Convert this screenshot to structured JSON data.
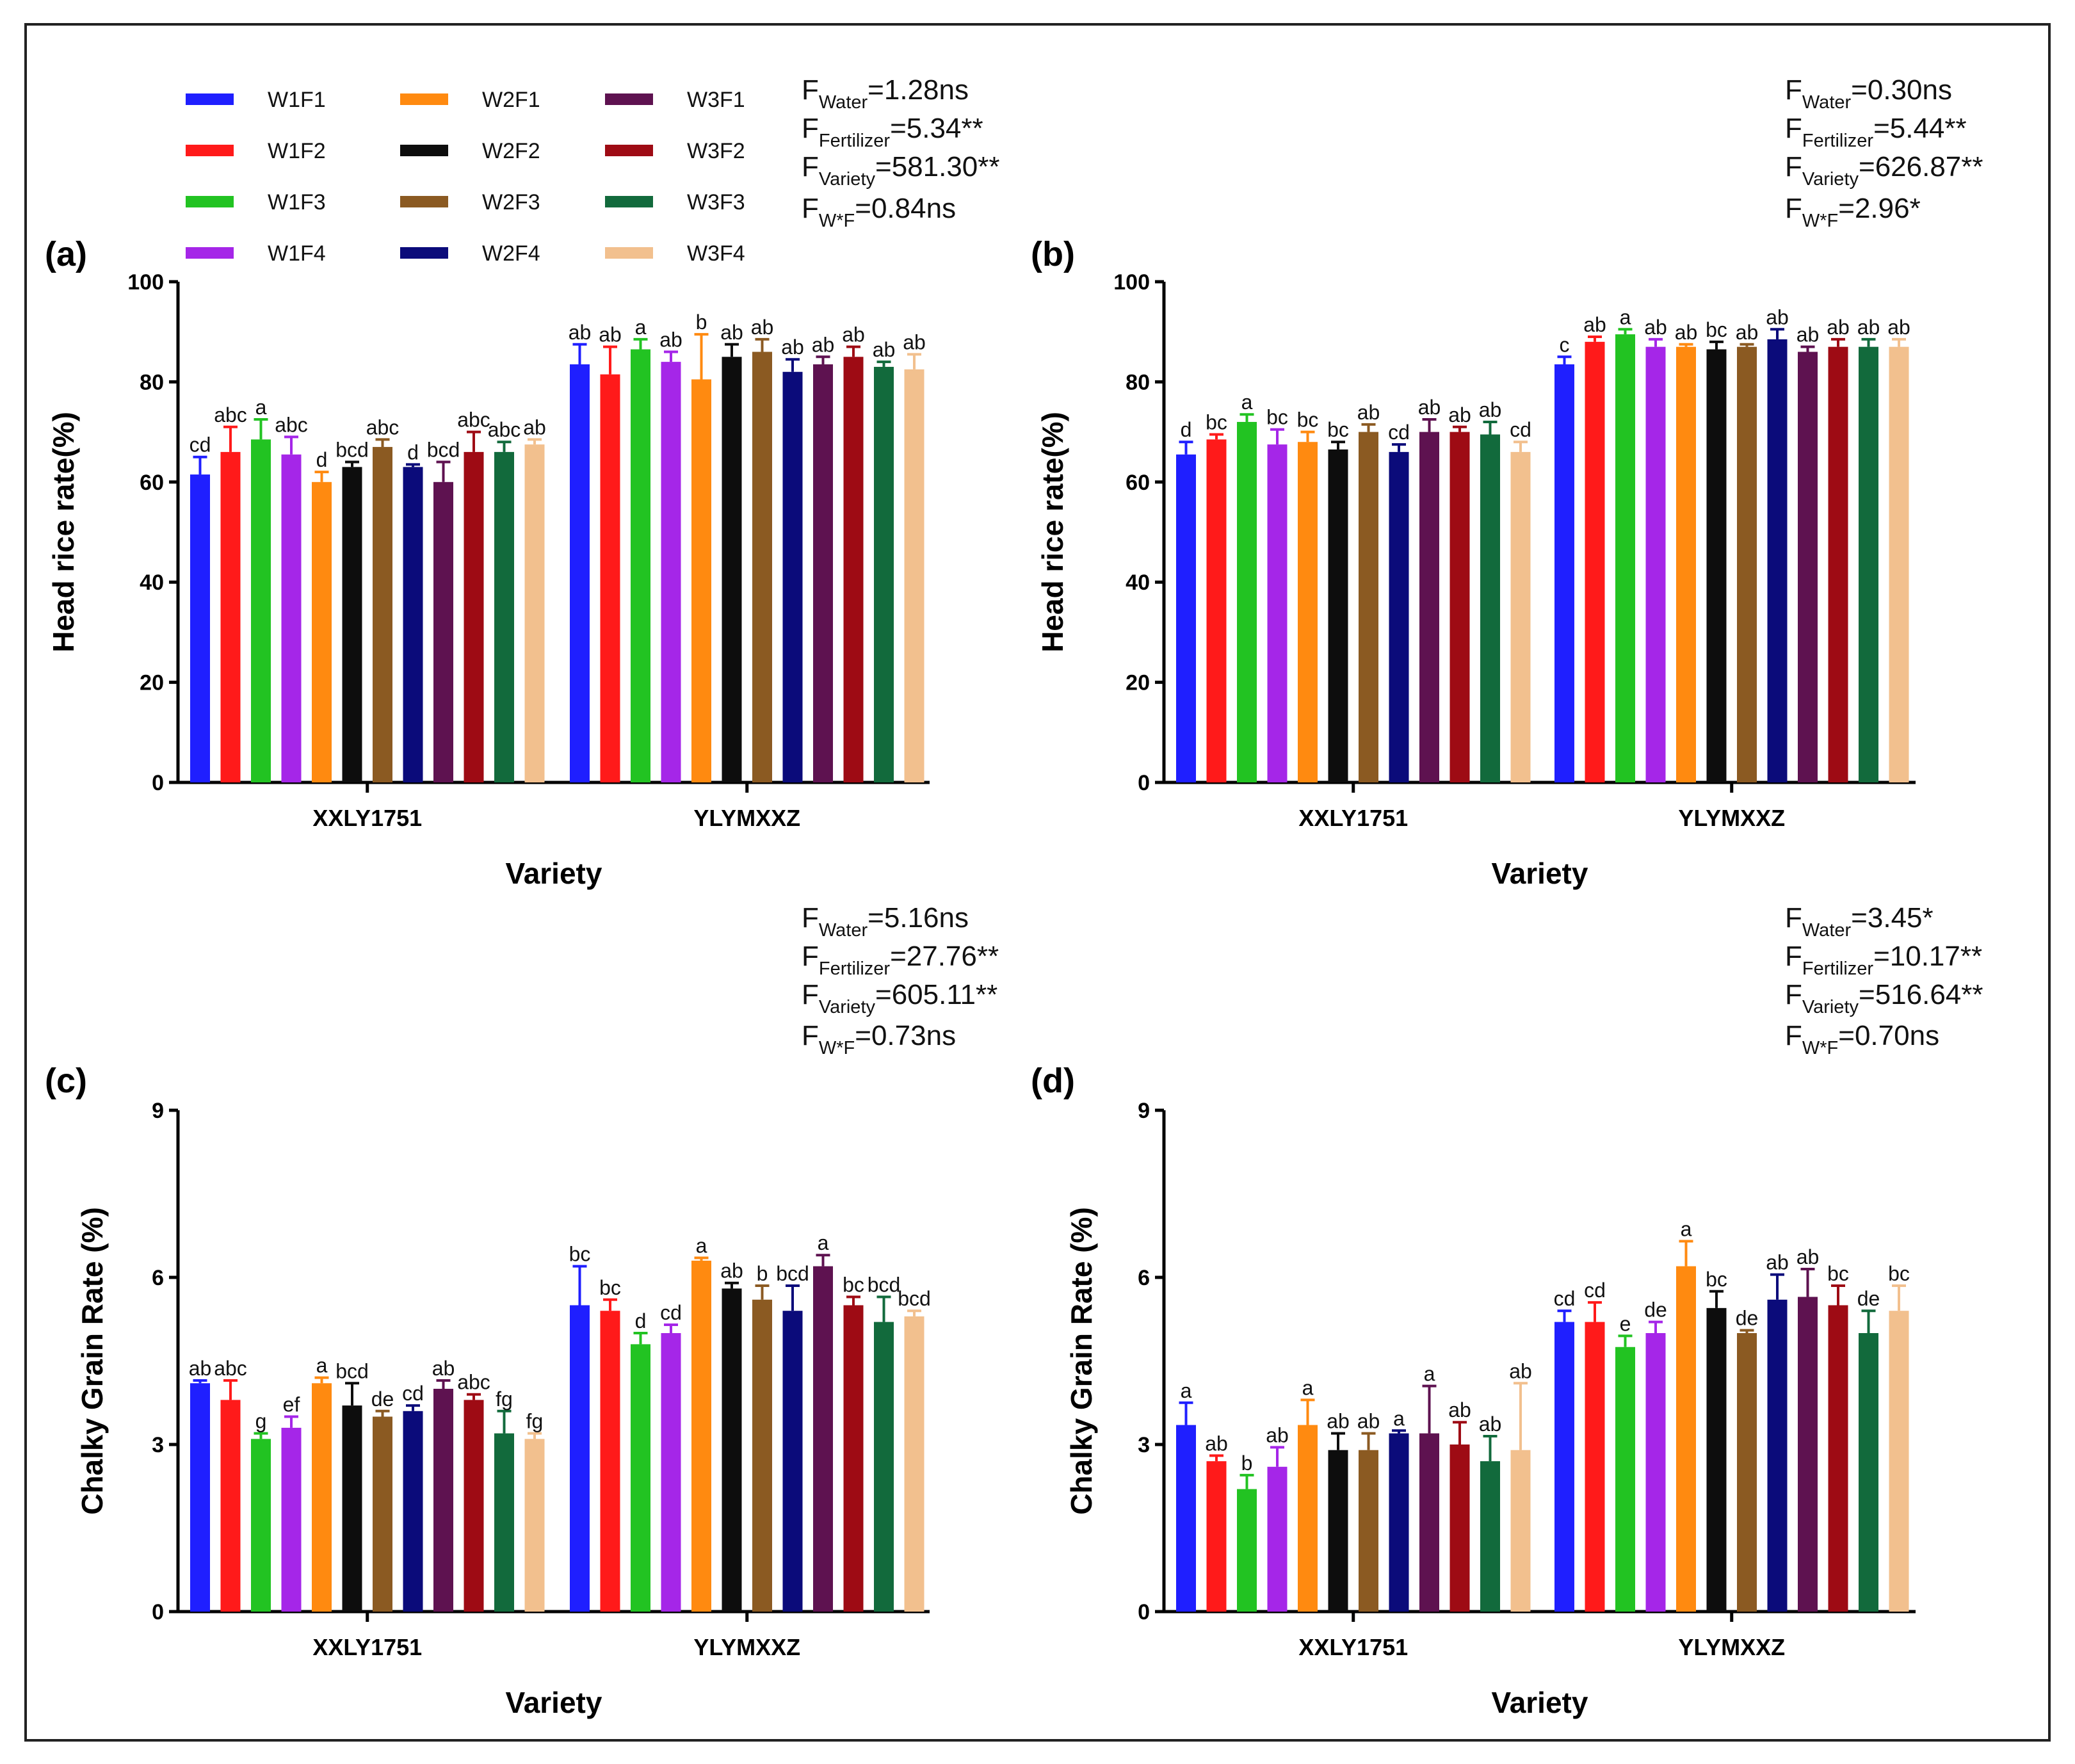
{
  "series_colors": {
    "W1F1": "#1f1fff",
    "W1F2": "#ff1a1a",
    "W1F3": "#22c322",
    "W1F4": "#a526e8",
    "W2F1": "#ff8a10",
    "W2F2": "#0d0d0d",
    "W2F3": "#8b5a22",
    "W2F4": "#0b0b7a",
    "W3F1": "#5e1250",
    "W3F2": "#9e0b14",
    "W3F3": "#126a3c",
    "W3F4": "#f2c08e"
  },
  "chart_data": [
    {
      "type": "bar",
      "panel_label": "(a)",
      "ylabel": "Head rice rate(%)",
      "xlabel": "Variety",
      "ylim": [
        0,
        100
      ],
      "yticks": [
        0,
        20,
        40,
        60,
        80,
        100
      ],
      "ytick_labels": [
        "0",
        "20",
        "40",
        "60",
        "80",
        "100"
      ],
      "categories": [
        "XXLY1751",
        "YLYMXXZ"
      ],
      "legend": [
        "W1F1",
        "W1F2",
        "W1F3",
        "W1F4",
        "W2F1",
        "W2F2",
        "W2F3",
        "W2F4",
        "W3F1",
        "W3F2",
        "W3F3",
        "W3F4"
      ],
      "series": [
        {
          "name": "W1F1",
          "values": [
            61.5,
            83.5
          ],
          "errors": [
            3.5,
            4.0
          ],
          "letters": [
            "cd",
            "ab"
          ]
        },
        {
          "name": "W1F2",
          "values": [
            66.0,
            81.5
          ],
          "errors": [
            5.0,
            5.5
          ],
          "letters": [
            "abc",
            "ab"
          ]
        },
        {
          "name": "W1F3",
          "values": [
            68.5,
            86.5
          ],
          "errors": [
            4.0,
            2.0
          ],
          "letters": [
            "a",
            "a"
          ]
        },
        {
          "name": "W1F4",
          "values": [
            65.5,
            84.0
          ],
          "errors": [
            3.5,
            2.0
          ],
          "letters": [
            "abc",
            "ab"
          ]
        },
        {
          "name": "W2F1",
          "values": [
            60.0,
            80.5
          ],
          "errors": [
            2.0,
            9.0
          ],
          "letters": [
            "d",
            "b"
          ]
        },
        {
          "name": "W2F2",
          "values": [
            63.0,
            85.0
          ],
          "errors": [
            1.0,
            2.5
          ],
          "letters": [
            "bcd",
            "ab"
          ]
        },
        {
          "name": "W2F3",
          "values": [
            67.0,
            86.0
          ],
          "errors": [
            1.5,
            2.5
          ],
          "letters": [
            "abc",
            "ab"
          ]
        },
        {
          "name": "W2F4",
          "values": [
            63.0,
            82.0
          ],
          "errors": [
            0.5,
            2.5
          ],
          "letters": [
            "d",
            "ab"
          ]
        },
        {
          "name": "W3F1",
          "values": [
            60.0,
            83.5
          ],
          "errors": [
            4.0,
            1.5
          ],
          "letters": [
            "bcd",
            "ab"
          ]
        },
        {
          "name": "W3F2",
          "values": [
            66.0,
            85.0
          ],
          "errors": [
            4.0,
            2.0
          ],
          "letters": [
            "abc",
            "ab"
          ]
        },
        {
          "name": "W3F3",
          "values": [
            66.0,
            83.0
          ],
          "errors": [
            2.0,
            1.0
          ],
          "letters": [
            "abc",
            "ab"
          ]
        },
        {
          "name": "W3F4",
          "values": [
            67.5,
            82.5
          ],
          "errors": [
            1.0,
            3.0
          ],
          "letters": [
            "ab",
            "ab"
          ]
        }
      ],
      "stats": [
        {
          "sub": "Water",
          "value": "=1.28ns"
        },
        {
          "sub": "Fertilizer",
          "value": "=5.34**"
        },
        {
          "sub": "Variety",
          "value": "=581.30**"
        },
        {
          "sub": "W*F",
          "value": "=0.84ns"
        }
      ]
    },
    {
      "type": "bar",
      "panel_label": "(b)",
      "ylabel": "Head rice rate(%)",
      "xlabel": "Variety",
      "ylim": [
        0,
        100
      ],
      "yticks": [
        0,
        20,
        40,
        60,
        80,
        100
      ],
      "ytick_labels": [
        "0",
        "20",
        "40",
        "60",
        "80",
        "100"
      ],
      "categories": [
        "XXLY1751",
        "YLYMXXZ"
      ],
      "series": [
        {
          "name": "W1F1",
          "values": [
            65.5,
            83.5
          ],
          "errors": [
            2.5,
            1.5
          ],
          "letters": [
            "d",
            "c"
          ]
        },
        {
          "name": "W1F2",
          "values": [
            68.5,
            88.0
          ],
          "errors": [
            1.0,
            1.0
          ],
          "letters": [
            "bc",
            "ab"
          ]
        },
        {
          "name": "W1F3",
          "values": [
            72.0,
            89.5
          ],
          "errors": [
            1.5,
            1.0
          ],
          "letters": [
            "a",
            "a"
          ]
        },
        {
          "name": "W1F4",
          "values": [
            67.5,
            87.0
          ],
          "errors": [
            3.0,
            1.5
          ],
          "letters": [
            "bc",
            "ab"
          ]
        },
        {
          "name": "W2F1",
          "values": [
            68.0,
            87.0
          ],
          "errors": [
            2.0,
            0.5
          ],
          "letters": [
            "bc",
            "ab"
          ]
        },
        {
          "name": "W2F2",
          "values": [
            66.5,
            86.5
          ],
          "errors": [
            1.5,
            1.5
          ],
          "letters": [
            "bc",
            "bc"
          ]
        },
        {
          "name": "W2F3",
          "values": [
            70.0,
            87.0
          ],
          "errors": [
            1.5,
            0.5
          ],
          "letters": [
            "ab",
            "ab"
          ]
        },
        {
          "name": "W2F4",
          "values": [
            66.0,
            88.5
          ],
          "errors": [
            1.5,
            2.0
          ],
          "letters": [
            "cd",
            "ab"
          ]
        },
        {
          "name": "W3F1",
          "values": [
            70.0,
            86.0
          ],
          "errors": [
            2.5,
            1.0
          ],
          "letters": [
            "ab",
            "ab"
          ]
        },
        {
          "name": "W3F2",
          "values": [
            70.0,
            87.0
          ],
          "errors": [
            1.0,
            1.5
          ],
          "letters": [
            "ab",
            "ab"
          ]
        },
        {
          "name": "W3F3",
          "values": [
            69.5,
            87.0
          ],
          "errors": [
            2.5,
            1.5
          ],
          "letters": [
            "ab",
            "ab"
          ]
        },
        {
          "name": "W3F4",
          "values": [
            66.0,
            87.0
          ],
          "errors": [
            2.0,
            1.5
          ],
          "letters": [
            "cd",
            "ab"
          ]
        }
      ],
      "stats": [
        {
          "sub": "Water",
          "value": "=0.30ns"
        },
        {
          "sub": "Fertilizer",
          "value": "=5.44**"
        },
        {
          "sub": "Variety",
          "value": "=626.87**"
        },
        {
          "sub": "W*F",
          "value": "=2.96*"
        }
      ]
    },
    {
      "type": "bar",
      "panel_label": "(c)",
      "ylabel": "Chalky Grain Rate (%)",
      "xlabel": "Variety",
      "ylim": [
        0,
        9
      ],
      "yticks": [
        0,
        3,
        6,
        9
      ],
      "ytick_labels": [
        "0",
        "3",
        "6",
        "9"
      ],
      "categories": [
        "XXLY1751",
        "YLYMXXZ"
      ],
      "series": [
        {
          "name": "W1F1",
          "values": [
            4.1,
            5.5
          ],
          "errors": [
            0.05,
            0.7
          ],
          "letters": [
            "ab",
            "bc"
          ]
        },
        {
          "name": "W1F2",
          "values": [
            3.8,
            5.4
          ],
          "errors": [
            0.35,
            0.2
          ],
          "letters": [
            "abc",
            "bc"
          ]
        },
        {
          "name": "W1F3",
          "values": [
            3.1,
            4.8
          ],
          "errors": [
            0.1,
            0.2
          ],
          "letters": [
            "g",
            "d"
          ]
        },
        {
          "name": "W1F4",
          "values": [
            3.3,
            5.0
          ],
          "errors": [
            0.2,
            0.15
          ],
          "letters": [
            "ef",
            "cd"
          ]
        },
        {
          "name": "W2F1",
          "values": [
            4.1,
            6.3
          ],
          "errors": [
            0.1,
            0.05
          ],
          "letters": [
            "a",
            "a"
          ]
        },
        {
          "name": "W2F2",
          "values": [
            3.7,
            5.8
          ],
          "errors": [
            0.4,
            0.1
          ],
          "letters": [
            "bcd",
            "ab"
          ]
        },
        {
          "name": "W2F3",
          "values": [
            3.5,
            5.6
          ],
          "errors": [
            0.1,
            0.25
          ],
          "letters": [
            "de",
            "b"
          ]
        },
        {
          "name": "W2F4",
          "values": [
            3.6,
            5.4
          ],
          "errors": [
            0.1,
            0.45
          ],
          "letters": [
            "cd",
            "bcd"
          ]
        },
        {
          "name": "W3F1",
          "values": [
            4.0,
            6.2
          ],
          "errors": [
            0.15,
            0.2
          ],
          "letters": [
            "ab",
            "a"
          ]
        },
        {
          "name": "W3F2",
          "values": [
            3.8,
            5.5
          ],
          "errors": [
            0.1,
            0.15
          ],
          "letters": [
            "abc",
            "bc"
          ]
        },
        {
          "name": "W3F3",
          "values": [
            3.2,
            5.2
          ],
          "errors": [
            0.4,
            0.45
          ],
          "letters": [
            "fg",
            "bcd"
          ]
        },
        {
          "name": "W3F4",
          "values": [
            3.1,
            5.3
          ],
          "errors": [
            0.1,
            0.1
          ],
          "letters": [
            "fg",
            "bcd"
          ]
        }
      ],
      "stats": [
        {
          "sub": "Water",
          "value": "=5.16ns"
        },
        {
          "sub": "Fertilizer",
          "value": "=27.76**"
        },
        {
          "sub": "Variety",
          "value": "=605.11**"
        },
        {
          "sub": "W*F",
          "value": "=0.73ns"
        }
      ]
    },
    {
      "type": "bar",
      "panel_label": "(d)",
      "ylabel": "Chalky Grain Rate (%)",
      "xlabel": "Variety",
      "ylim": [
        0,
        9
      ],
      "yticks": [
        0,
        3,
        6,
        9
      ],
      "ytick_labels": [
        "0",
        "3",
        "6",
        "9"
      ],
      "categories": [
        "XXLY1751",
        "YLYMXXZ"
      ],
      "series": [
        {
          "name": "W1F1",
          "values": [
            3.35,
            5.2
          ],
          "errors": [
            0.4,
            0.2
          ],
          "letters": [
            "a",
            "cd"
          ]
        },
        {
          "name": "W1F2",
          "values": [
            2.7,
            5.2
          ],
          "errors": [
            0.1,
            0.35
          ],
          "letters": [
            "ab",
            "cd"
          ]
        },
        {
          "name": "W1F3",
          "values": [
            2.2,
            4.75
          ],
          "errors": [
            0.25,
            0.2
          ],
          "letters": [
            "b",
            "e"
          ]
        },
        {
          "name": "W1F4",
          "values": [
            2.6,
            5.0
          ],
          "errors": [
            0.35,
            0.2
          ],
          "letters": [
            "ab",
            "de"
          ]
        },
        {
          "name": "W2F1",
          "values": [
            3.35,
            6.2
          ],
          "errors": [
            0.45,
            0.45
          ],
          "letters": [
            "a",
            "a"
          ]
        },
        {
          "name": "W2F2",
          "values": [
            2.9,
            5.45
          ],
          "errors": [
            0.3,
            0.3
          ],
          "letters": [
            "ab",
            "bc"
          ]
        },
        {
          "name": "W2F3",
          "values": [
            2.9,
            5.0
          ],
          "errors": [
            0.3,
            0.05
          ],
          "letters": [
            "ab",
            "de"
          ]
        },
        {
          "name": "W2F4",
          "values": [
            3.2,
            5.6
          ],
          "errors": [
            0.05,
            0.45
          ],
          "letters": [
            "a",
            "ab"
          ]
        },
        {
          "name": "W3F1",
          "values": [
            3.2,
            5.65
          ],
          "errors": [
            0.85,
            0.5
          ],
          "letters": [
            "a",
            "ab"
          ]
        },
        {
          "name": "W3F2",
          "values": [
            3.0,
            5.5
          ],
          "errors": [
            0.4,
            0.35
          ],
          "letters": [
            "ab",
            "bc"
          ]
        },
        {
          "name": "W3F3",
          "values": [
            2.7,
            5.0
          ],
          "errors": [
            0.45,
            0.4
          ],
          "letters": [
            "ab",
            "de"
          ]
        },
        {
          "name": "W3F4",
          "values": [
            2.9,
            5.4
          ],
          "errors": [
            1.2,
            0.45
          ],
          "letters": [
            "ab",
            "bc"
          ]
        }
      ],
      "stats": [
        {
          "sub": "Water",
          "value": "=3.45*"
        },
        {
          "sub": "Fertilizer",
          "value": "=10.17**"
        },
        {
          "sub": "Variety",
          "value": "=516.64**"
        },
        {
          "sub": "W*F",
          "value": "=0.70ns"
        }
      ]
    }
  ]
}
